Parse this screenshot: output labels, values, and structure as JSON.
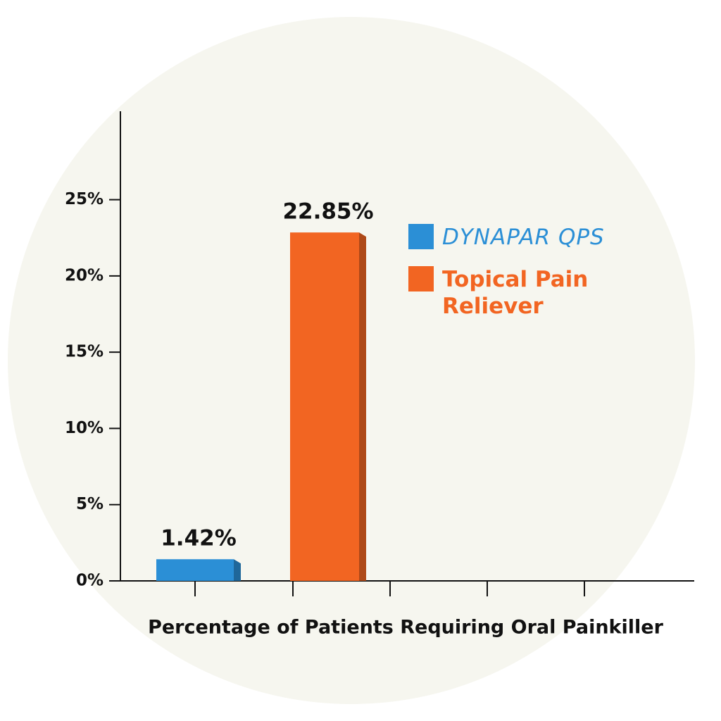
{
  "chart_data": {
    "type": "bar",
    "x_label": "Percentage of Patients Requiring Oral Painkiller",
    "categories": [
      null
    ],
    "series": [
      {
        "name": "DYNAPAR QPS",
        "color": "#2b8fd6",
        "values": [
          1.42
        ],
        "value_labels": [
          "1.42%"
        ]
      },
      {
        "name": "Topical Pain Reliever",
        "color": "#f26522",
        "values": [
          22.85
        ],
        "value_labels": [
          "22.85%"
        ]
      }
    ],
    "ylim": [
      0,
      30.8
    ],
    "yticks": [
      {
        "value": 0,
        "label": "0%"
      },
      {
        "value": 5,
        "label": "5%"
      },
      {
        "value": 10,
        "label": "10%"
      },
      {
        "value": 15,
        "label": "15%"
      },
      {
        "value": 20,
        "label": "20%"
      },
      {
        "value": 25,
        "label": "25%"
      }
    ],
    "grid": false,
    "legend": "right"
  }
}
